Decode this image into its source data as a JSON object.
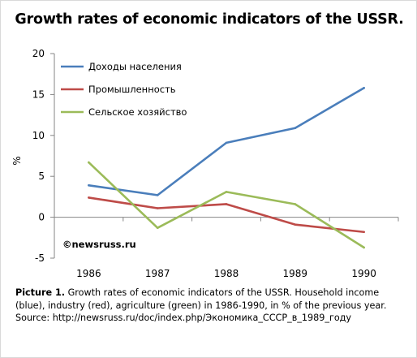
{
  "title": "Growth rates of economic indicators of the USSR.",
  "chart_data": {
    "type": "line",
    "x": [
      "1986",
      "1987",
      "1988",
      "1989",
      "1990"
    ],
    "series": [
      {
        "name": "Доходы населения",
        "color": "#4a7ebb",
        "values": [
          3.9,
          2.7,
          9.1,
          10.9,
          15.8
        ]
      },
      {
        "name": "Промышленность",
        "color": "#be4b48",
        "values": [
          2.4,
          1.1,
          1.6,
          -0.9,
          -1.8
        ]
      },
      {
        "name": "Сельское хозяйство",
        "color": "#9bbb59",
        "values": [
          6.7,
          -1.3,
          3.1,
          1.6,
          -3.7
        ]
      }
    ],
    "ylabel": "%",
    "ylim": [
      -5,
      20
    ],
    "yticks": [
      "20",
      "15",
      "10",
      "5",
      "0",
      "-5"
    ],
    "grid": false,
    "legend_position": "top-left",
    "watermark": "©newsruss.ru"
  },
  "caption": {
    "label": "Picture 1.",
    "text": " Growth rates of economic indicators of the USSR. Household income (blue), industry (red), agriculture (green) in 1986-1990, in % of the previous year.",
    "source": "Source: http://newsruss.ru/doc/index.php/Экономика_СССР_в_1989_году"
  }
}
